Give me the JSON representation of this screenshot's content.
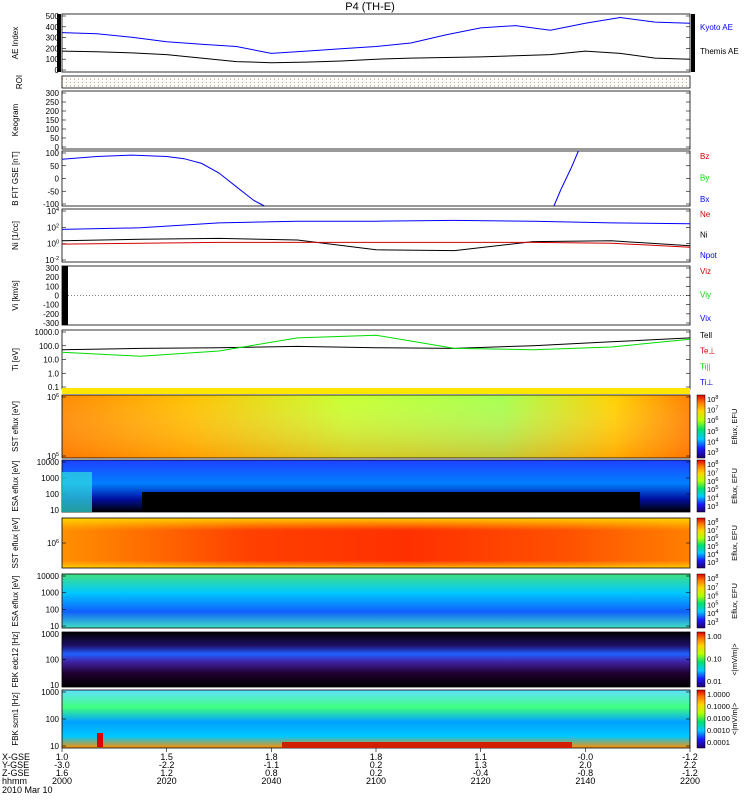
{
  "title": "P4 (TH-E)",
  "date_label": "2010 Mar 10",
  "colors": {
    "blue": "#0000ff",
    "black": "#000000",
    "red": "#d40000",
    "green": "#00dd00",
    "yellow": "#ffe600"
  },
  "chart_data": [
    {
      "id": "ae",
      "type": "line",
      "ylabel": "AE Index",
      "yticks": [
        "500",
        "400",
        "300",
        "200",
        "100",
        "0"
      ],
      "ylim": [
        0,
        500
      ],
      "x": [
        0,
        10,
        20,
        30,
        40,
        50,
        60,
        70,
        80,
        90,
        100,
        110,
        120,
        130,
        140,
        150,
        160,
        170,
        180
      ],
      "series": [
        {
          "name": "Kyoto AE",
          "color": "blue",
          "values": [
            340,
            330,
            300,
            260,
            240,
            220,
            160,
            180,
            200,
            220,
            250,
            320,
            380,
            400,
            360,
            420,
            470,
            430,
            420
          ]
        },
        {
          "name": "Themis AE",
          "color": "black",
          "values": [
            180,
            175,
            165,
            150,
            120,
            90,
            80,
            85,
            95,
            110,
            120,
            125,
            130,
            140,
            150,
            180,
            160,
            120,
            110
          ]
        }
      ]
    },
    {
      "id": "roi",
      "type": "line",
      "ylabel": "ROI",
      "series": []
    },
    {
      "id": "keogram",
      "type": "line",
      "ylabel": "Keogram",
      "yticks": [
        "300",
        "250",
        "200",
        "150",
        "100",
        "50",
        "0"
      ],
      "series": []
    },
    {
      "id": "bfit",
      "type": "line",
      "ylabel": "B FIT GSE [nT]",
      "yticks": [
        "100",
        "50",
        "0",
        "-50",
        "-100"
      ],
      "ylim": [
        -100,
        100
      ],
      "legend": [
        {
          "name": "Bz",
          "color": "red"
        },
        {
          "name": "By",
          "color": "green"
        },
        {
          "name": "Bx",
          "color": "blue"
        }
      ],
      "series": [
        {
          "name": "Bx",
          "color": "blue",
          "x": [
            0,
            10,
            20,
            30,
            35,
            40,
            45,
            50,
            55,
            58
          ],
          "values": [
            70,
            80,
            85,
            80,
            72,
            55,
            20,
            -30,
            -80,
            -100
          ]
        },
        {
          "name": "Bx",
          "color": "blue",
          "x": [
            141,
            143,
            146,
            148
          ],
          "values": [
            -100,
            -40,
            40,
            100
          ]
        }
      ]
    },
    {
      "id": "ni",
      "type": "line",
      "ylabel": "Ni [1/cc]",
      "yticks": [
        "10^4",
        "10^2",
        "10^0",
        "10^-2"
      ],
      "legend": [
        {
          "name": "Ne",
          "color": "red"
        },
        {
          "name": "Ni",
          "color": "black"
        },
        {
          "name": "Npot",
          "color": "blue"
        }
      ],
      "series": [
        {
          "name": "Npot",
          "color": "blue",
          "values": [
            2.0,
            2.2,
            2.8,
            3.0,
            3.0,
            3.1,
            3.0,
            2.8,
            2.7
          ]
        },
        {
          "name": "Ni",
          "color": "black",
          "values": [
            0.6,
            0.8,
            0.9,
            0.7,
            -0.5,
            -0.6,
            0.5,
            0.6,
            0.0
          ]
        },
        {
          "name": "Ne",
          "color": "red",
          "values": [
            0.2,
            0.3,
            0.4,
            0.4,
            0.4,
            0.4,
            0.4,
            0.3,
            -0.2
          ]
        }
      ]
    },
    {
      "id": "vi",
      "type": "line",
      "ylabel": "Vi [km/s]",
      "yticks": [
        "300",
        "200",
        "100",
        "0",
        "-100",
        "-200",
        "-300"
      ],
      "ylim": [
        -300,
        300
      ],
      "legend": [
        {
          "name": "Viz",
          "color": "red"
        },
        {
          "name": "Viy",
          "color": "green"
        },
        {
          "name": "Vix",
          "color": "blue"
        }
      ],
      "series": []
    },
    {
      "id": "ti",
      "type": "line",
      "ylabel": "Ti [eV]",
      "yticks": [
        "1000.0",
        "100.0",
        "10.0",
        "1.0",
        "0.1"
      ],
      "legend": [
        {
          "name": "Tell",
          "color": "black"
        },
        {
          "name": "Te⊥",
          "color": "red"
        },
        {
          "name": "Ti||",
          "color": "green"
        },
        {
          "name": "Ti⊥",
          "color": "blue"
        }
      ],
      "series": [
        {
          "name": "Tell",
          "color": "black",
          "values": [
            2.0,
            2.1,
            2.15,
            2.25,
            2.15,
            2.1,
            2.3,
            2.6,
            2.9
          ]
        },
        {
          "name": "Ti||",
          "color": "green",
          "values": [
            1.8,
            1.5,
            1.9,
            2.9,
            3.1,
            2.1,
            2.0,
            2.2,
            2.8
          ]
        }
      ]
    },
    {
      "id": "sst1",
      "type": "heatmap",
      "ylabel": "SST eflux [eV]",
      "yticks": [
        "10^6",
        "10^5"
      ],
      "cbar_label": "Eflux, EFU",
      "cbar_ticks": [
        "10^8",
        "10^7",
        "10^6",
        "10^5",
        "10^4",
        "10^3"
      ]
    },
    {
      "id": "esa1",
      "type": "heatmap",
      "ylabel": "ESA eflux [eV]",
      "yticks": [
        "10000",
        "1000",
        "100",
        "10"
      ],
      "cbar_label": "Eflux, EFU",
      "cbar_ticks": [
        "10^8",
        "10^7",
        "10^6",
        "10^5",
        "10^4",
        "10^3"
      ]
    },
    {
      "id": "sst2",
      "type": "heatmap",
      "ylabel": "SST eflux [eV]",
      "yticks": [
        "10^6"
      ],
      "cbar_label": "Eflux, EFU",
      "cbar_ticks": [
        "10^8",
        "10^7",
        "10^6",
        "10^5",
        "10^4",
        "10^3"
      ]
    },
    {
      "id": "esa2",
      "type": "heatmap",
      "ylabel": "ESA eflux [eV]",
      "yticks": [
        "10000",
        "1000",
        "100",
        "10"
      ],
      "cbar_label": "Eflux, EFU",
      "cbar_ticks": [
        "10^8",
        "10^7",
        "10^6",
        "10^5",
        "10^4",
        "10^3"
      ]
    },
    {
      "id": "fbk1",
      "type": "heatmap",
      "ylabel": "FBK edc12 [Hz]",
      "yticks": [
        "1000",
        "100",
        "10"
      ],
      "cbar_label": "<|mV/m|>",
      "cbar_ticks": [
        "1.00",
        "0.10",
        "0.01"
      ]
    },
    {
      "id": "fbk2",
      "type": "heatmap",
      "ylabel": "FBK scm1 [Hz]",
      "yticks": [
        "1000",
        "100",
        "10"
      ],
      "cbar_label": "<|mV/m|>",
      "cbar_ticks": [
        "1.0000",
        "0.1000",
        "0.0100",
        "0.0010",
        "0.0001"
      ]
    }
  ],
  "time_axis": {
    "row_labels": [
      "X-GSE",
      "Y-GSE",
      "Z-GSE",
      "hhmm"
    ],
    "columns": [
      {
        "x": "1.0",
        "y": "-3.0",
        "z": "1.6",
        "t": "2000"
      },
      {
        "x": "1.5",
        "y": "-2.2",
        "z": "1.2",
        "t": "2020"
      },
      {
        "x": "1.8",
        "y": "-1.1",
        "z": "0.8",
        "t": "2040"
      },
      {
        "x": "1.8",
        "y": "0.2",
        "z": "0.2",
        "t": "2100"
      },
      {
        "x": "1.1",
        "y": "1.3",
        "z": "-0.4",
        "t": "2120"
      },
      {
        "x": "-0.0",
        "y": "2.0",
        "z": "-0.8",
        "t": "2140"
      },
      {
        "x": "-1.2",
        "y": "2.2",
        "z": "-1.2",
        "t": "2200"
      }
    ]
  }
}
